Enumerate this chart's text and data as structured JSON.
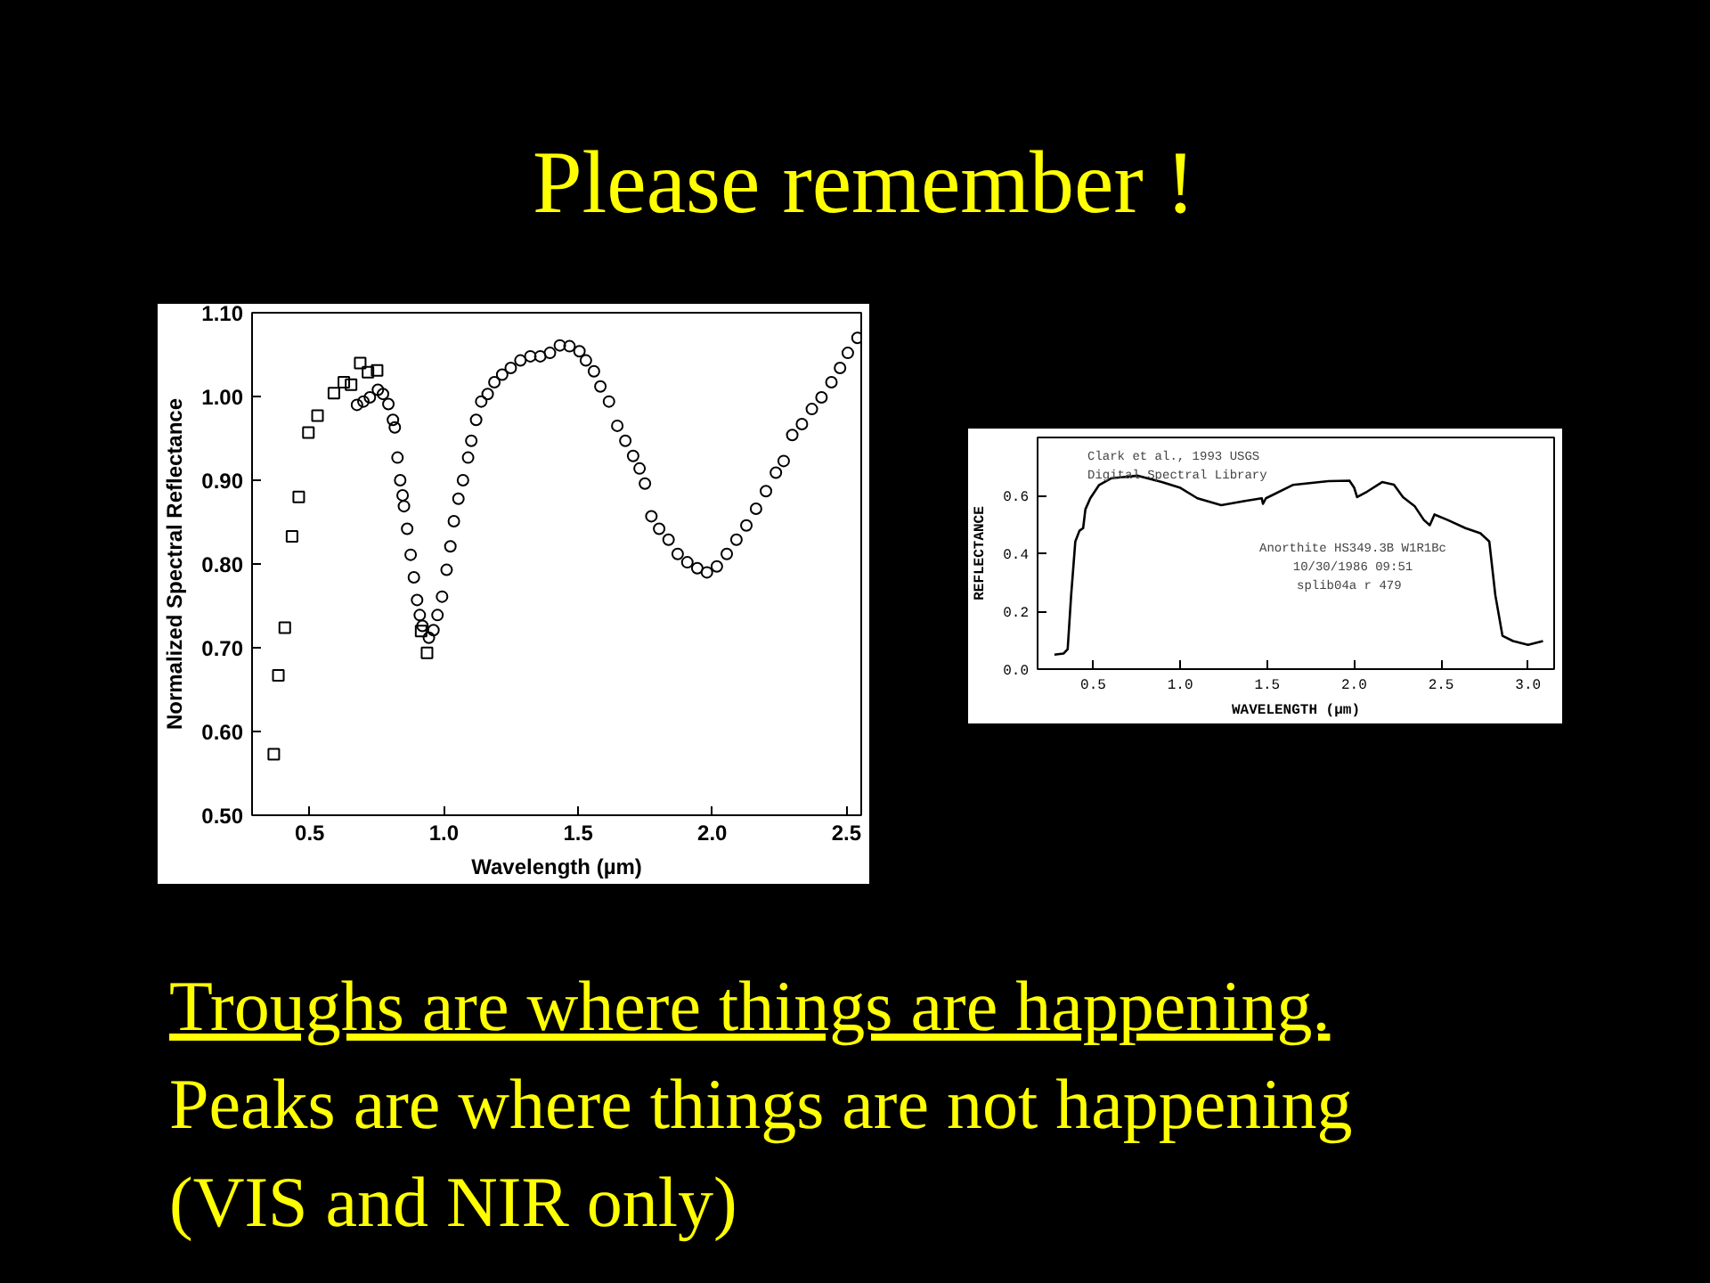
{
  "chart_data": [
    {
      "type": "scatter",
      "title": "Please remember !",
      "xlabel": "Wavelength (µm)",
      "ylabel": "Normalized Spectral Reflectance",
      "xlim": [
        0.285,
        2.555
      ],
      "ylim": [
        0.5,
        1.1
      ],
      "xticks": [
        0.5,
        {
          "value": 1,
          "label": "1.0"
        },
        1.5,
        {
          "value": 2,
          "label": "2.0"
        },
        2.5
      ],
      "yticks": [
        {
          "value": 0.5,
          "label": "0.50"
        },
        {
          "value": 0.6,
          "label": "0.60"
        },
        {
          "value": 0.7,
          "label": "0.70"
        },
        {
          "value": 0.8,
          "label": "0.80"
        },
        {
          "value": 0.9,
          "label": "0.90"
        },
        {
          "value": 1.0,
          "label": "1.00"
        },
        {
          "value": 1.1,
          "label": "1.10"
        }
      ],
      "series": [
        {
          "color": "#000000",
          "marker": "square",
          "x": [
            0.366,
            0.383,
            0.407,
            0.434,
            0.459,
            0.495,
            0.529,
            0.59,
            0.627,
            0.654,
            0.688,
            0.717,
            0.751,
            0.915,
            0.937
          ],
          "values": [
            0.573,
            0.667,
            0.724,
            0.833,
            0.88,
            0.957,
            0.977,
            1.004,
            1.017,
            1.014,
            1.04,
            1.029,
            1.031,
            0.72,
            0.694
          ]
        },
        {
          "color": "#000000",
          "marker": "circle",
          "x": [
            0.676,
            0.7,
            0.724,
            0.754,
            0.773,
            0.793,
            0.81,
            0.817,
            0.827,
            0.837,
            0.846,
            0.851,
            0.863,
            0.876,
            0.888,
            0.9,
            0.91,
            0.92,
            0.944,
            0.961,
            0.976,
            0.993,
            1.01,
            1.024,
            1.037,
            1.054,
            1.071,
            1.09,
            1.102,
            1.12,
            1.139,
            1.163,
            1.188,
            1.217,
            1.249,
            1.285,
            1.322,
            1.359,
            1.395,
            1.432,
            1.468,
            1.505,
            1.529,
            1.559,
            1.583,
            1.615,
            1.646,
            1.676,
            1.705,
            1.729,
            1.749,
            1.773,
            1.802,
            1.837,
            1.871,
            1.907,
            1.944,
            1.98,
            2.017,
            2.054,
            2.09,
            2.127,
            2.163,
            2.2,
            2.237,
            2.266,
            2.298,
            2.334,
            2.371,
            2.407,
            2.444,
            2.476,
            2.505,
            2.541
          ],
          "values": [
            0.99,
            0.994,
            0.999,
            1.008,
            1.003,
            0.991,
            0.972,
            0.963,
            0.927,
            0.9,
            0.882,
            0.869,
            0.842,
            0.811,
            0.784,
            0.757,
            0.739,
            0.726,
            0.712,
            0.721,
            0.739,
            0.761,
            0.793,
            0.821,
            0.851,
            0.878,
            0.9,
            0.927,
            0.947,
            0.972,
            0.994,
            1.003,
            1.017,
            1.026,
            1.034,
            1.043,
            1.048,
            1.048,
            1.052,
            1.061,
            1.06,
            1.054,
            1.043,
            1.03,
            1.012,
            0.994,
            0.965,
            0.947,
            0.929,
            0.914,
            0.896,
            0.857,
            0.842,
            0.829,
            0.812,
            0.802,
            0.795,
            0.79,
            0.797,
            0.812,
            0.829,
            0.846,
            0.866,
            0.887,
            0.909,
            0.923,
            0.954,
            0.967,
            0.985,
            0.999,
            1.017,
            1.034,
            1.052,
            1.07
          ]
        }
      ],
      "annotations": [
        "Troughs are where things are happening.",
        "Peaks are where things are not happening",
        "(VIS and NIR only)"
      ]
    },
    {
      "type": "line",
      "xlabel": "WAVELENGTH (µm)",
      "ylabel": "REFLECTANCE",
      "xlim": [
        0.18,
        3.15
      ],
      "ylim": [
        0,
        0.8
      ],
      "xticks": [
        0.5,
        {
          "value": 1,
          "label": "1.0"
        },
        1.5,
        {
          "value": 2,
          "label": "2.0"
        },
        2.5,
        {
          "value": 3,
          "label": "3.0"
        }
      ],
      "yticks": [
        {
          "value": 0,
          "label": "0.0"
        },
        0.2,
        0.4,
        0.6
      ],
      "series": [
        {
          "color": "#000000",
          "x": [
            0.277,
            0.33,
            0.353,
            0.373,
            0.397,
            0.421,
            0.442,
            0.455,
            0.483,
            0.534,
            0.603,
            0.757,
            0.894,
            0.997,
            1.099,
            1.236,
            1.373,
            1.469,
            1.476,
            1.493,
            1.647,
            1.853,
            1.973,
            2.0,
            2.017,
            2.075,
            2.161,
            2.229,
            2.281,
            2.349,
            2.401,
            2.435,
            2.462,
            2.538,
            2.64,
            2.726,
            2.777,
            2.812,
            2.853,
            2.914,
            3.0,
            3.086
          ],
          "values": [
            0.05,
            0.054,
            0.069,
            0.255,
            0.441,
            0.478,
            0.487,
            0.552,
            0.59,
            0.636,
            0.659,
            0.668,
            0.646,
            0.627,
            0.59,
            0.566,
            0.581,
            0.59,
            0.571,
            0.59,
            0.636,
            0.649,
            0.651,
            0.627,
            0.594,
            0.613,
            0.646,
            0.637,
            0.594,
            0.562,
            0.515,
            0.497,
            0.534,
            0.515,
            0.487,
            0.469,
            0.441,
            0.255,
            0.115,
            0.097,
            0.084,
            0.097
          ]
        }
      ],
      "annotations": [
        "Clark et al., 1993 USGS\nDigital Spectral Library",
        "Anorthite HS349.3B W1R1Bc\n10/30/1986 09:51\nsplib04a r  479"
      ]
    }
  ]
}
